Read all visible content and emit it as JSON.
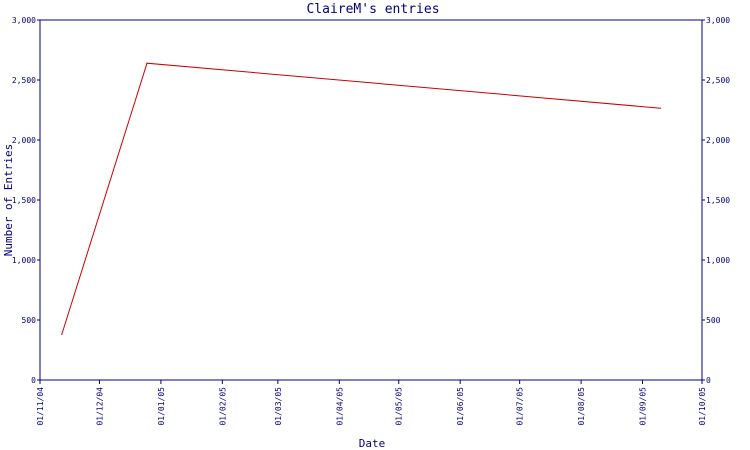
{
  "chart_data": {
    "type": "line",
    "title": "ClaireM's entries",
    "xlabel": "Date",
    "ylabel": "Number of Entries",
    "x_ticks": [
      "01/11/04",
      "01/12/04",
      "01/01/05",
      "01/02/05",
      "01/03/05",
      "01/04/05",
      "01/05/05",
      "01/06/05",
      "01/07/05",
      "01/08/05",
      "01/09/05",
      "01/10/05"
    ],
    "y_ticks": [
      "0",
      "500",
      "1,000",
      "1,500",
      "2,000",
      "2,500",
      "3,000"
    ],
    "ylim": [
      0,
      3000
    ],
    "xlim": [
      "2004-11-01",
      "2005-10-01"
    ],
    "grid": false,
    "y_axis_mirrored_right": true,
    "series": [
      {
        "color": "#cc0000",
        "points": [
          {
            "x": "2004-11-12",
            "y": 380
          },
          {
            "x": "2004-12-25",
            "y": 2640
          },
          {
            "x": "2005-09-10",
            "y": 2265
          }
        ]
      }
    ]
  },
  "colors": {
    "axis": "#000080",
    "line": "#cc0000",
    "background": "#ffffff"
  }
}
